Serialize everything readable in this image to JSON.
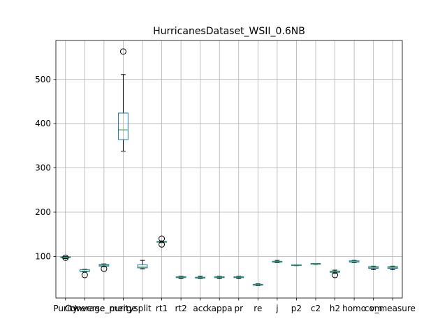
{
  "chart_data": {
    "type": "box",
    "title": "HurricanesDataset_WSII_0.6NB",
    "xlabel": "",
    "ylabel": "",
    "ylim": [
      6,
      588
    ],
    "yticks": [
      100,
      200,
      300,
      400,
      500
    ],
    "grid": true,
    "colors": {
      "box": "#1f77b4",
      "median": "#2ca02c",
      "whisker": "#000000",
      "flier": "#000000"
    },
    "categories": [
      "Purity",
      "Coverage",
      "Inverse_purity",
      "merge",
      "split",
      "rt1",
      "rt2",
      "acc",
      "kappa",
      "pr",
      "re",
      "j",
      "p2",
      "c2",
      "h2",
      "homo",
      "com",
      "v_measure"
    ],
    "boxes": [
      {
        "name": "Purity",
        "whislo": 95,
        "q1": 97,
        "med": 98,
        "q3": 99,
        "whishi": 100,
        "fliers": [
          97
        ]
      },
      {
        "name": "Coverage",
        "whislo": 65,
        "q1": 66,
        "med": 67,
        "q3": 70,
        "whishi": 71,
        "fliers": [
          58
        ]
      },
      {
        "name": "Inverse_purity",
        "whislo": 77,
        "q1": 78,
        "med": 80,
        "q3": 82,
        "whishi": 83,
        "fliers": [
          72
        ]
      },
      {
        "name": "merge",
        "whislo": 338,
        "q1": 364,
        "med": 386,
        "q3": 424,
        "whishi": 511,
        "fliers": [
          563
        ]
      },
      {
        "name": "split",
        "whislo": 72,
        "q1": 74,
        "med": 76,
        "q3": 81,
        "whishi": 91,
        "fliers": []
      },
      {
        "name": "rt1",
        "whislo": 131,
        "q1": 132,
        "med": 133,
        "q3": 134,
        "whishi": 135,
        "fliers": [
          127,
          140
        ]
      },
      {
        "name": "rt2",
        "whislo": 50,
        "q1": 52,
        "med": 53,
        "q3": 54,
        "whishi": 55,
        "fliers": []
      },
      {
        "name": "acc",
        "whislo": 50,
        "q1": 51,
        "med": 52,
        "q3": 53,
        "whishi": 55,
        "fliers": []
      },
      {
        "name": "kappa",
        "whislo": 50,
        "q1": 52,
        "med": 53,
        "q3": 54,
        "whishi": 55,
        "fliers": []
      },
      {
        "name": "pr",
        "whislo": 50,
        "q1": 52,
        "med": 53,
        "q3": 54,
        "whishi": 55,
        "fliers": []
      },
      {
        "name": "re",
        "whislo": 34,
        "q1": 35,
        "med": 36,
        "q3": 37,
        "whishi": 38,
        "fliers": []
      },
      {
        "name": "j",
        "whislo": 86,
        "q1": 87,
        "med": 88,
        "q3": 89,
        "whishi": 91,
        "fliers": []
      },
      {
        "name": "p2",
        "whislo": 79,
        "q1": 80,
        "med": 80,
        "q3": 81,
        "whishi": 81,
        "fliers": []
      },
      {
        "name": "c2",
        "whislo": 82,
        "q1": 83,
        "med": 83,
        "q3": 84,
        "whishi": 84,
        "fliers": []
      },
      {
        "name": "h2",
        "whislo": 62,
        "q1": 64,
        "med": 66,
        "q3": 67,
        "whishi": 69,
        "fliers": [
          58
        ]
      },
      {
        "name": "homo",
        "whislo": 86,
        "q1": 87,
        "med": 88,
        "q3": 90,
        "whishi": 91,
        "fliers": []
      },
      {
        "name": "com",
        "whislo": 70,
        "q1": 73,
        "med": 75,
        "q3": 77,
        "whishi": 78,
        "fliers": []
      },
      {
        "name": "v_measure",
        "whislo": 70,
        "q1": 73,
        "med": 75,
        "q3": 77,
        "whishi": 78,
        "fliers": []
      }
    ]
  }
}
